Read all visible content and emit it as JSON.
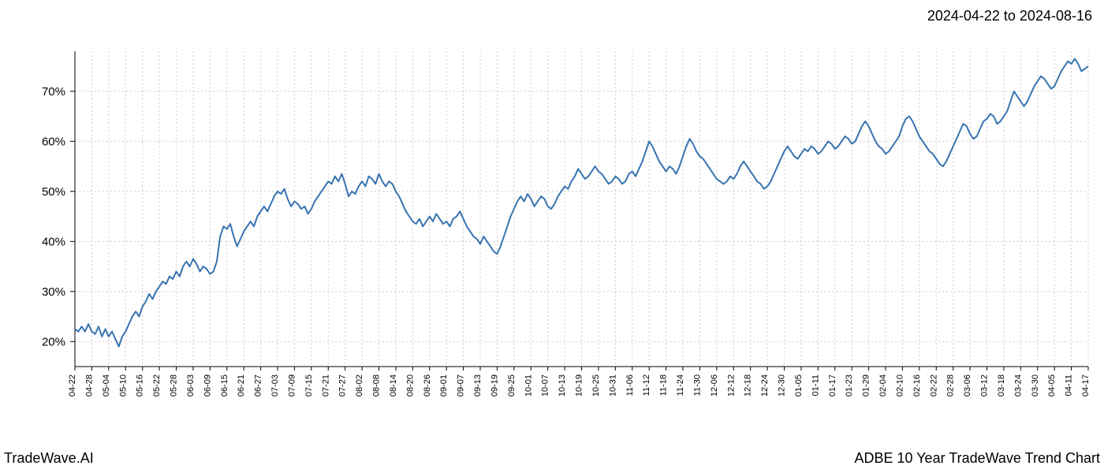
{
  "date_range": "2024-04-22 to 2024-08-16",
  "footer_left": "TradeWave.AI",
  "footer_right": "ADBE 10 Year TradeWave Trend Chart",
  "chart": {
    "type": "line",
    "background_color": "#ffffff",
    "highlight_region": {
      "x_start": "04-22",
      "x_end": "08-16",
      "fill_color": "#d9ead8",
      "opacity": 0.7
    },
    "line_color": "#3773b1",
    "line_width": 2,
    "axis_color": "#000000",
    "grid_color": "#cccccc",
    "grid_dash": "2,3",
    "y_axis": {
      "min": 15,
      "max": 78,
      "ticks": [
        20,
        30,
        40,
        50,
        60,
        70
      ],
      "tick_labels": [
        "20%",
        "30%",
        "40%",
        "50%",
        "60%",
        "70%"
      ],
      "label_fontsize": 15,
      "label_color": "#000000"
    },
    "x_axis": {
      "labels": [
        "04-22",
        "04-28",
        "05-04",
        "05-10",
        "05-16",
        "05-22",
        "05-28",
        "06-03",
        "06-09",
        "06-15",
        "06-21",
        "06-27",
        "07-03",
        "07-09",
        "07-15",
        "07-21",
        "07-27",
        "08-02",
        "08-08",
        "08-14",
        "08-20",
        "08-26",
        "09-01",
        "09-07",
        "09-13",
        "09-19",
        "09-25",
        "10-01",
        "10-07",
        "10-13",
        "10-19",
        "10-25",
        "10-31",
        "11-06",
        "11-12",
        "11-18",
        "11-24",
        "11-30",
        "12-06",
        "12-12",
        "12-18",
        "12-24",
        "12-30",
        "01-05",
        "01-11",
        "01-17",
        "01-23",
        "01-29",
        "02-04",
        "02-10",
        "02-16",
        "02-22",
        "02-28",
        "03-06",
        "03-12",
        "03-18",
        "03-24",
        "03-30",
        "04-05",
        "04-11",
        "04-17"
      ],
      "label_fontsize": 11,
      "label_color": "#000000",
      "rotation": 90
    },
    "series": [
      22.5,
      22.0,
      23.0,
      22.0,
      23.5,
      22.0,
      21.5,
      23.0,
      21.0,
      22.5,
      21.0,
      22.0,
      20.5,
      19.0,
      21.0,
      22.0,
      23.5,
      25.0,
      26.0,
      25.0,
      27.0,
      28.0,
      29.5,
      28.5,
      30.0,
      31.0,
      32.0,
      31.5,
      33.0,
      32.5,
      34.0,
      33.0,
      35.0,
      36.0,
      35.0,
      36.5,
      35.5,
      34.0,
      35.0,
      34.5,
      33.5,
      34.0,
      36.0,
      41.0,
      43.0,
      42.5,
      43.5,
      41.0,
      39.0,
      40.5,
      42.0,
      43.0,
      44.0,
      43.0,
      45.0,
      46.0,
      47.0,
      46.0,
      47.5,
      49.0,
      50.0,
      49.5,
      50.5,
      48.5,
      47.0,
      48.0,
      47.5,
      46.5,
      47.0,
      45.5,
      46.5,
      48.0,
      49.0,
      50.0,
      51.0,
      52.0,
      51.5,
      53.0,
      52.0,
      53.5,
      51.5,
      49.0,
      50.0,
      49.5,
      51.0,
      52.0,
      51.0,
      53.0,
      52.5,
      51.5,
      53.5,
      52.0,
      51.0,
      52.0,
      51.5,
      50.0,
      49.0,
      47.5,
      46.0,
      45.0,
      44.0,
      43.5,
      44.5,
      43.0,
      44.0,
      45.0,
      44.0,
      45.5,
      44.5,
      43.5,
      44.0,
      43.0,
      44.5,
      45.0,
      46.0,
      44.5,
      43.0,
      42.0,
      41.0,
      40.5,
      39.5,
      41.0,
      40.0,
      39.0,
      38.0,
      37.5,
      39.0,
      41.0,
      43.0,
      45.0,
      46.5,
      48.0,
      49.0,
      48.0,
      49.5,
      48.5,
      47.0,
      48.0,
      49.0,
      48.5,
      47.0,
      46.5,
      47.5,
      49.0,
      50.0,
      51.0,
      50.5,
      52.0,
      53.0,
      54.5,
      53.5,
      52.5,
      53.0,
      54.0,
      55.0,
      54.0,
      53.5,
      52.5,
      51.5,
      52.0,
      53.0,
      52.5,
      51.5,
      52.0,
      53.5,
      54.0,
      53.0,
      54.5,
      56.0,
      58.0,
      60.0,
      59.0,
      57.5,
      56.0,
      55.0,
      54.0,
      55.0,
      54.5,
      53.5,
      55.0,
      57.0,
      59.0,
      60.5,
      59.5,
      58.0,
      57.0,
      56.5,
      55.5,
      54.5,
      53.5,
      52.5,
      52.0,
      51.5,
      52.0,
      53.0,
      52.5,
      53.5,
      55.0,
      56.0,
      55.0,
      54.0,
      53.0,
      52.0,
      51.5,
      50.5,
      51.0,
      52.0,
      53.5,
      55.0,
      56.5,
      58.0,
      59.0,
      58.0,
      57.0,
      56.5,
      57.5,
      58.5,
      58.0,
      59.0,
      58.5,
      57.5,
      58.0,
      59.0,
      60.0,
      59.5,
      58.5,
      59.0,
      60.0,
      61.0,
      60.5,
      59.5,
      60.0,
      61.5,
      63.0,
      64.0,
      63.0,
      61.5,
      60.0,
      59.0,
      58.5,
      57.5,
      58.0,
      59.0,
      60.0,
      61.0,
      63.0,
      64.5,
      65.0,
      64.0,
      62.5,
      61.0,
      60.0,
      59.0,
      58.0,
      57.5,
      56.5,
      55.5,
      55.0,
      56.0,
      57.5,
      59.0,
      60.5,
      62.0,
      63.5,
      63.0,
      61.5,
      60.5,
      61.0,
      62.5,
      64.0,
      64.5,
      65.5,
      65.0,
      63.5,
      64.0,
      65.0,
      66.0,
      68.0,
      70.0,
      69.0,
      68.0,
      67.0,
      68.0,
      69.5,
      71.0,
      72.0,
      73.0,
      72.5,
      71.5,
      70.5,
      71.0,
      72.5,
      74.0,
      75.0,
      76.0,
      75.5,
      76.5,
      75.5,
      74.0,
      74.5,
      75.0
    ]
  }
}
